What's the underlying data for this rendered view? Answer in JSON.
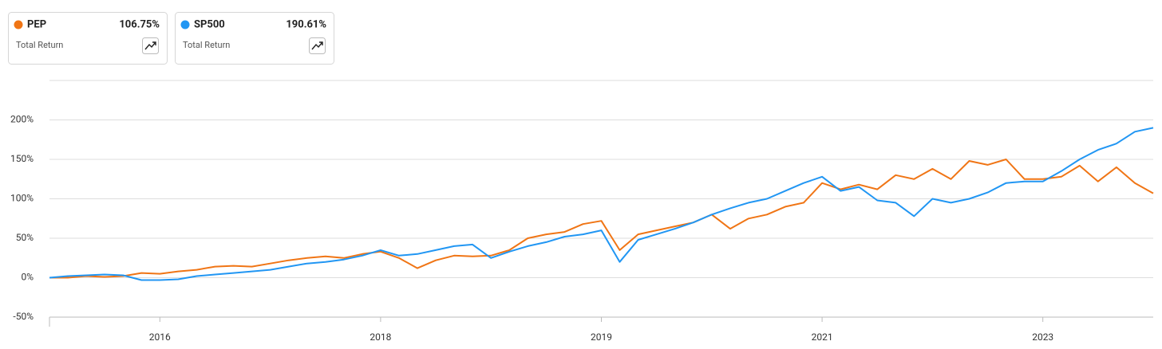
{
  "chart_data": {
    "type": "line",
    "categories": [
      null,
      null,
      null,
      null,
      null,
      null,
      "2016",
      null,
      null,
      null,
      null,
      null,
      null,
      null,
      null,
      null,
      null,
      null,
      "2018",
      null,
      null,
      null,
      null,
      null,
      null,
      null,
      null,
      null,
      null,
      null,
      "2019",
      null,
      null,
      null,
      null,
      null,
      null,
      null,
      null,
      null,
      null,
      null,
      "2021",
      null,
      null,
      null,
      null,
      null,
      null,
      null,
      null,
      null,
      null,
      null,
      "2023",
      null,
      null,
      null,
      null,
      null,
      null
    ],
    "series": [
      {
        "name": "PEP",
        "color": "#f07515",
        "summary": "106.75%",
        "summary_caption": "Total Return",
        "values": [
          0,
          0,
          2,
          1,
          2,
          6,
          5,
          8,
          10,
          14,
          15,
          14,
          18,
          22,
          25,
          27,
          25,
          30,
          33,
          25,
          12,
          22,
          28,
          27,
          28,
          35,
          50,
          55,
          58,
          68,
          72,
          35,
          55,
          60,
          65,
          70,
          80,
          62,
          75,
          80,
          90,
          95,
          120,
          112,
          118,
          112,
          130,
          125,
          138,
          125,
          148,
          143,
          150,
          125,
          125,
          128,
          142,
          122,
          140,
          120,
          107
        ]
      },
      {
        "name": "SP500",
        "color": "#2196f3",
        "summary": "190.61%",
        "summary_caption": "Total Return",
        "values": [
          0,
          2,
          3,
          4,
          3,
          -3,
          -3,
          -2,
          2,
          4,
          6,
          8,
          10,
          14,
          18,
          20,
          23,
          28,
          35,
          28,
          30,
          35,
          40,
          42,
          25,
          33,
          40,
          45,
          52,
          55,
          60,
          20,
          48,
          55,
          62,
          70,
          80,
          88,
          95,
          100,
          110,
          120,
          128,
          110,
          115,
          98,
          95,
          78,
          100,
          95,
          100,
          108,
          120,
          122,
          122,
          135,
          150,
          162,
          170,
          185,
          190
        ]
      }
    ],
    "ylim": [
      -50,
      250
    ],
    "yticks": [
      {
        "value": -50,
        "label": "-50%"
      },
      {
        "value": 0,
        "label": "0%"
      },
      {
        "value": 50,
        "label": "50%"
      },
      {
        "value": 100,
        "label": "100%"
      },
      {
        "value": 150,
        "label": "150%"
      },
      {
        "value": 200,
        "label": "200%"
      }
    ],
    "grid": true
  }
}
